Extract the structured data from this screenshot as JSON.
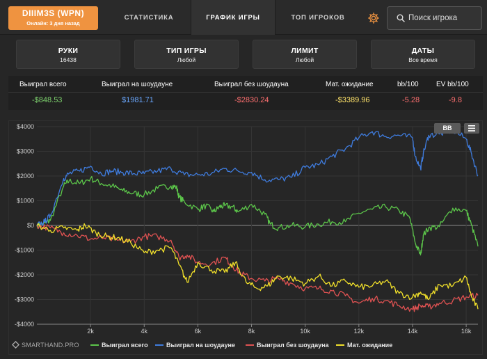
{
  "header": {
    "player": {
      "name": "DIIIM3S (WPN)",
      "status": "Онлайн: 3 дня назад"
    },
    "tabs": [
      {
        "label": "СТАТИСТИКА",
        "active": false
      },
      {
        "label": "ГРАФИК ИГРЫ",
        "active": true
      },
      {
        "label": "ТОП ИГРОКОВ",
        "active": false
      }
    ],
    "settings_icon": "gear-icon",
    "search": {
      "placeholder": "Поиск игрока",
      "icon": "search-icon"
    }
  },
  "filters": [
    {
      "title": "РУКИ",
      "value": "16438"
    },
    {
      "title": "ТИП ИГРЫ",
      "value": "Любой"
    },
    {
      "title": "ЛИМИТ",
      "value": "Любой"
    },
    {
      "title": "ДАТЫ",
      "value": "Все время"
    }
  ],
  "stats": {
    "headers": [
      "Выиграл всего",
      "Выиграл на шоудауне",
      "Выиграл без шоудауна",
      "Мат. ожидание",
      "bb/100",
      "EV bb/100"
    ],
    "values": [
      "-$848.53",
      "$1981.71",
      "-$2830.24",
      "-$3389.96",
      "-5.28",
      "-9.8"
    ],
    "colors": [
      "#7ed36e",
      "#6aa8ff",
      "#ff7070",
      "#ffe36a",
      "#ff7070",
      "#ff7070"
    ]
  },
  "chart_controls": {
    "bb_label": "BB",
    "menu_icon": "menu-icon"
  },
  "brand": "SMARTHAND.PRO",
  "chart_data": {
    "type": "line",
    "x_tick_labels": [
      "2k",
      "4k",
      "6k",
      "8k",
      "10k",
      "12k",
      "14k",
      "16k"
    ],
    "x_ticks": [
      2000,
      4000,
      6000,
      8000,
      10000,
      12000,
      14000,
      16000
    ],
    "y_tick_labels": [
      "$4000",
      "$3000",
      "$2000",
      "$1000",
      "$0",
      "-$1000",
      "-$2000",
      "-$3000",
      "-$4000"
    ],
    "y_ticks": [
      4000,
      3000,
      2000,
      1000,
      0,
      -1000,
      -2000,
      -3000,
      -4000
    ],
    "xlim": [
      0,
      16438
    ],
    "ylim": [
      -4000,
      4000
    ],
    "legend_position": "bottom",
    "series": [
      {
        "name": "Выиграл всего",
        "color": "#5cc64a",
        "points": [
          [
            0,
            0
          ],
          [
            300,
            100
          ],
          [
            500,
            200
          ],
          [
            1000,
            1600
          ],
          [
            1200,
            1800
          ],
          [
            1600,
            1700
          ],
          [
            2000,
            1900
          ],
          [
            2400,
            1700
          ],
          [
            2800,
            1600
          ],
          [
            3200,
            1400
          ],
          [
            3600,
            1300
          ],
          [
            4000,
            1250
          ],
          [
            4500,
            1500
          ],
          [
            5000,
            1600
          ],
          [
            5200,
            1550
          ],
          [
            5300,
            1150
          ],
          [
            5500,
            950
          ],
          [
            6000,
            650
          ],
          [
            6300,
            800
          ],
          [
            6600,
            550
          ],
          [
            6800,
            750
          ],
          [
            7000,
            800
          ],
          [
            7300,
            750
          ],
          [
            7500,
            550
          ],
          [
            8000,
            850
          ],
          [
            8500,
            450
          ],
          [
            8700,
            50
          ],
          [
            9000,
            -100
          ],
          [
            9500,
            0
          ],
          [
            10000,
            -50
          ],
          [
            10500,
            50
          ],
          [
            11000,
            150
          ],
          [
            11500,
            150
          ],
          [
            12000,
            500
          ],
          [
            12500,
            650
          ],
          [
            13000,
            750
          ],
          [
            13500,
            600
          ],
          [
            13900,
            300
          ],
          [
            14100,
            -700
          ],
          [
            14300,
            -1200
          ],
          [
            14400,
            -400
          ],
          [
            14600,
            -100
          ],
          [
            15000,
            -50
          ],
          [
            15500,
            700
          ],
          [
            16000,
            600
          ],
          [
            16200,
            0
          ],
          [
            16438,
            -850
          ]
        ]
      },
      {
        "name": "Выиграл на шоудауне",
        "color": "#3f7cde",
        "points": [
          [
            0,
            0
          ],
          [
            300,
            150
          ],
          [
            500,
            400
          ],
          [
            1000,
            1900
          ],
          [
            1200,
            2100
          ],
          [
            1600,
            2200
          ],
          [
            2000,
            2400
          ],
          [
            2400,
            2100
          ],
          [
            2800,
            2200
          ],
          [
            3200,
            2150
          ],
          [
            3600,
            2100
          ],
          [
            4000,
            2100
          ],
          [
            4500,
            2200
          ],
          [
            5000,
            2300
          ],
          [
            5500,
            2050
          ],
          [
            6000,
            2050
          ],
          [
            6500,
            2100
          ],
          [
            7000,
            2300
          ],
          [
            7500,
            2200
          ],
          [
            8000,
            2150
          ],
          [
            8500,
            1850
          ],
          [
            9000,
            1850
          ],
          [
            9500,
            1950
          ],
          [
            10000,
            2350
          ],
          [
            10500,
            2450
          ],
          [
            11000,
            2800
          ],
          [
            11500,
            3100
          ],
          [
            12000,
            3550
          ],
          [
            12500,
            3800
          ],
          [
            13000,
            3600
          ],
          [
            13500,
            3650
          ],
          [
            14000,
            3550
          ],
          [
            14100,
            2800
          ],
          [
            14300,
            2300
          ],
          [
            14400,
            2900
          ],
          [
            14600,
            3650
          ],
          [
            15000,
            3700
          ],
          [
            15500,
            3850
          ],
          [
            16000,
            3500
          ],
          [
            16200,
            2900
          ],
          [
            16438,
            2000
          ]
        ]
      },
      {
        "name": "Выиграл без шоудауна",
        "color": "#e05252",
        "points": [
          [
            0,
            0
          ],
          [
            500,
            -100
          ],
          [
            1000,
            -300
          ],
          [
            1500,
            -400
          ],
          [
            2000,
            -550
          ],
          [
            2500,
            -500
          ],
          [
            3000,
            -600
          ],
          [
            3500,
            -650
          ],
          [
            4000,
            -450
          ],
          [
            4500,
            -450
          ],
          [
            5000,
            -600
          ],
          [
            5300,
            -1300
          ],
          [
            5600,
            -1200
          ],
          [
            6000,
            -1500
          ],
          [
            6500,
            -1550
          ],
          [
            7000,
            -1300
          ],
          [
            7300,
            -1650
          ],
          [
            7600,
            -1950
          ],
          [
            8000,
            -2150
          ],
          [
            8500,
            -2250
          ],
          [
            9000,
            -2150
          ],
          [
            9500,
            -2350
          ],
          [
            10000,
            -2550
          ],
          [
            10500,
            -2550
          ],
          [
            11000,
            -2650
          ],
          [
            11500,
            -2850
          ],
          [
            12000,
            -3150
          ],
          [
            12500,
            -2950
          ],
          [
            13000,
            -3050
          ],
          [
            13500,
            -3250
          ],
          [
            14000,
            -3400
          ],
          [
            14300,
            -3250
          ],
          [
            14600,
            -3300
          ],
          [
            15000,
            -3150
          ],
          [
            15500,
            -3050
          ],
          [
            16000,
            -2900
          ],
          [
            16438,
            -2830
          ]
        ]
      },
      {
        "name": "Мат. ожидание",
        "color": "#f2e12a",
        "points": [
          [
            0,
            0
          ],
          [
            500,
            -200
          ],
          [
            1000,
            -100
          ],
          [
            1500,
            -200
          ],
          [
            1800,
            0
          ],
          [
            2200,
            -300
          ],
          [
            2600,
            -450
          ],
          [
            3000,
            -500
          ],
          [
            3500,
            -700
          ],
          [
            4000,
            -1100
          ],
          [
            4500,
            -1000
          ],
          [
            5000,
            -900
          ],
          [
            5300,
            -1600
          ],
          [
            5600,
            -2300
          ],
          [
            6000,
            -1500
          ],
          [
            6500,
            -1800
          ],
          [
            7000,
            -1900
          ],
          [
            7400,
            -1500
          ],
          [
            7800,
            -2300
          ],
          [
            8200,
            -2550
          ],
          [
            8600,
            -2450
          ],
          [
            9000,
            -2050
          ],
          [
            9500,
            -2150
          ],
          [
            10000,
            -2350
          ],
          [
            10500,
            -2050
          ],
          [
            11000,
            -2450
          ],
          [
            11500,
            -2250
          ],
          [
            12000,
            -2500
          ],
          [
            12500,
            -2450
          ],
          [
            13000,
            -2250
          ],
          [
            13500,
            -2750
          ],
          [
            14000,
            -2900
          ],
          [
            14300,
            -2700
          ],
          [
            14600,
            -3000
          ],
          [
            15000,
            -2400
          ],
          [
            15500,
            -2450
          ],
          [
            16000,
            -2100
          ],
          [
            16200,
            -2900
          ],
          [
            16438,
            -3390
          ]
        ]
      }
    ]
  }
}
